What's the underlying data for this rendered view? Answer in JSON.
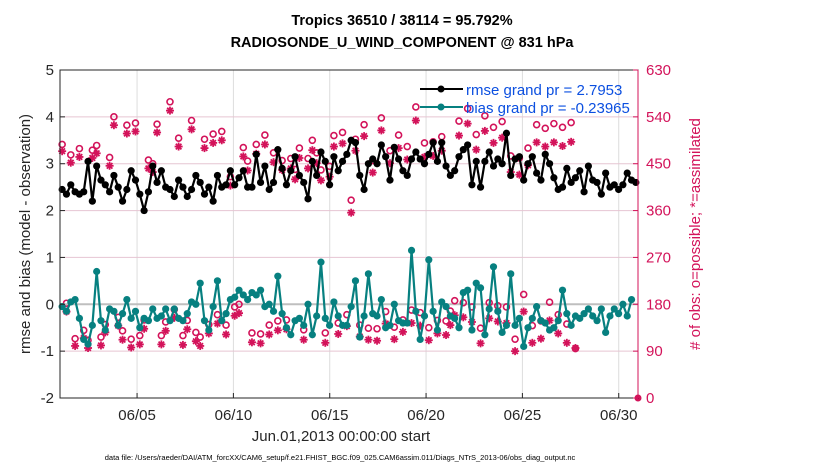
{
  "chart_data": {
    "type": "line",
    "title": "Tropics 36510 / 38114 = 95.792%",
    "subtitle": "RADIOSONDE_U_WIND_COMPONENT @ 831 hPa",
    "xlabel": "Jun.01,2013 00:00:00 start",
    "ylabel": "rmse and bias (model - observation)",
    "ylabel_right": "# of obs: o=possible; *=assimilated",
    "footnote": "data file: /Users/raeder/DAI/ATM_forcXX/CAM6_setup/f.e21.FHIST_BGC.f09_025.CAM6assim.011/Diags_NTrS_2013-06/obs_diag_output.nc",
    "x_unit": "days since Jun 1 2013 00:00",
    "xlim": [
      0,
      30
    ],
    "ylim": [
      -2,
      5
    ],
    "ylim_right": [
      0,
      630
    ],
    "x_ticks": [
      {
        "x": 4,
        "label": "06/05"
      },
      {
        "x": 9,
        "label": "06/10"
      },
      {
        "x": 14,
        "label": "06/15"
      },
      {
        "x": 19,
        "label": "06/20"
      },
      {
        "x": 24,
        "label": "06/25"
      },
      {
        "x": 29,
        "label": "06/30"
      }
    ],
    "y_ticks": [
      "-2",
      "-1",
      "0",
      "1",
      "2",
      "3",
      "4",
      "5"
    ],
    "y_ticks_right": [
      "0",
      "90",
      "180",
      "270",
      "360",
      "450",
      "540",
      "630"
    ],
    "grid": true,
    "legend_position": "top-right",
    "colors": {
      "rmse": "#000000",
      "bias": "#078080",
      "obs": "#d3135a",
      "zero_line": "#bfbfbf",
      "grid": "#e6c5d2",
      "legend_text": "#0b4fe0"
    },
    "legend": [
      {
        "name": "rmse grand pr = 2.7953"
      },
      {
        "name": "bias grand pr = -0.23965"
      }
    ],
    "series": [
      {
        "name": "rmse",
        "values": [
          2.45,
          2.35,
          2.55,
          2.4,
          2.35,
          2.4,
          3.05,
          2.2,
          2.95,
          2.65,
          2.55,
          2.4,
          2.75,
          2.5,
          2.2,
          2.45,
          2.85,
          2.65,
          2.35,
          2.0,
          2.4,
          2.95,
          2.6,
          2.85,
          2.5,
          2.45,
          2.3,
          2.65,
          2.5,
          2.3,
          2.45,
          2.75,
          2.6,
          2.35,
          2.5,
          2.2,
          2.75,
          2.5,
          2.55,
          2.85,
          2.55,
          2.7,
          2.85,
          2.5,
          2.5,
          3.2,
          2.6,
          2.95,
          2.45,
          2.6,
          3.3,
          2.9,
          2.55,
          2.85,
          3.15,
          2.75,
          2.6,
          2.25,
          3.05,
          2.75,
          3.25,
          3.05,
          2.55,
          3.15,
          2.85,
          3.05,
          3.2,
          3.5,
          3.45,
          2.75,
          2.45,
          3.0,
          3.1,
          3.0,
          3.4,
          3.15,
          2.65,
          3.35,
          3.1,
          2.85,
          2.75,
          3.1,
          3.25,
          3.1,
          3.0,
          3.2,
          3.45,
          3.05,
          3.45,
          2.95,
          2.75,
          2.85,
          3.15,
          3.3,
          3.4,
          2.55,
          3.05,
          2.5,
          3.05,
          3.25,
          2.95,
          3.1,
          3.0,
          3.65,
          2.75,
          3.1,
          3.15,
          2.65,
          3.0,
          3.15,
          2.8,
          2.65,
          3.2,
          3.0,
          2.7,
          2.45,
          2.5,
          2.9,
          2.6,
          2.7,
          2.85,
          2.4,
          2.95,
          2.65,
          2.6,
          2.35,
          2.8,
          2.5,
          2.55,
          2.45,
          2.55,
          2.8,
          2.65,
          2.6
        ]
      },
      {
        "name": "bias",
        "values": [
          -0.05,
          -0.15,
          0.05,
          0.1,
          -0.3,
          -0.75,
          -0.85,
          -0.45,
          0.7,
          -0.35,
          -0.55,
          -0.1,
          -0.15,
          -0.45,
          -0.2,
          0.1,
          -0.3,
          -0.15,
          -0.5,
          -0.3,
          -0.35,
          -0.1,
          -0.3,
          -0.25,
          -0.1,
          -0.35,
          -0.1,
          -0.3,
          -0.35,
          -0.2,
          0.05,
          0.0,
          0.45,
          -0.35,
          -0.55,
          -0.05,
          0.5,
          -0.35,
          -0.2,
          0.1,
          0.15,
          0.3,
          0.2,
          0.1,
          0.25,
          0.2,
          0.3,
          -0.05,
          0.0,
          -0.15,
          0.6,
          -0.2,
          -0.5,
          -0.65,
          -0.35,
          -0.3,
          -0.45,
          0.0,
          -0.65,
          -0.25,
          0.9,
          -0.3,
          -0.45,
          0.05,
          -0.25,
          -0.45,
          -0.45,
          -0.05,
          0.5,
          -0.7,
          -0.25,
          0.65,
          -0.2,
          -0.25,
          0.1,
          -0.5,
          -0.45,
          0.0,
          -0.35,
          -0.4,
          -0.4,
          1.15,
          -0.15,
          -0.75,
          -0.25,
          0.95,
          -0.15,
          -0.55,
          0.05,
          -0.05,
          -0.25,
          -0.3,
          -0.5,
          0.25,
          0.3,
          -0.55,
          0.45,
          0.35,
          -0.65,
          -0.1,
          0.8,
          -0.15,
          -0.6,
          -0.45,
          0.65,
          -0.45,
          -0.3,
          -0.9,
          -0.5,
          -0.3,
          -0.05,
          -0.35,
          -0.4,
          -0.55,
          -0.5,
          -0.35,
          0.3,
          -0.2,
          -0.45,
          -0.25,
          -0.3,
          -0.2,
          -0.1,
          -0.25,
          -0.35,
          -0.1,
          -0.6,
          -0.25,
          -0.1,
          -0.2,
          0.0,
          -0.25,
          0.1
        ]
      },
      {
        "name": "obs_possible",
        "values": [
          487,
          182,
          467,
          114,
          479,
          130,
          111,
          476,
          485,
          117,
          141,
          462,
          540,
          155,
          129,
          524,
          113,
          528,
          120,
          150,
          457,
          450,
          526,
          120,
          146,
          569,
          170,
          499,
          120,
          149,
          533,
          126,
          117,
          497,
          141,
          507,
          160,
          512,
          140,
          425,
          175,
          180,
          481,
          455,
          125,
          487,
          123,
          505,
          140,
          471,
          148,
          456,
          150,
          460,
          439,
          480,
          131,
          460,
          495,
          471,
          438,
          125,
          445,
          504,
          144,
          510,
          160,
          380,
          497,
          140,
          525,
          134,
          456,
          133,
          538,
          166,
          475,
          136,
          505,
          150,
          483,
          169,
          559,
          164,
          490,
          135,
          492,
          149,
          502,
          148,
          167,
          187,
          532,
          183,
          556,
          175,
          506,
          134,
          542,
          183,
          520,
          177,
          531,
          175,
          465,
          113,
          461,
          199,
          480,
          139,
          525,
          148,
          518,
          184,
          527,
          160,
          520,
          142,
          529,
          95
        ]
      },
      {
        "name": "obs_assimilated",
        "values": [
          474,
          166,
          452,
          100,
          463,
          115,
          96,
          461,
          470,
          101,
          126,
          446,
          524,
          139,
          112,
          508,
          97,
          512,
          103,
          133,
          441,
          434,
          510,
          103,
          129,
          552,
          154,
          483,
          102,
          132,
          516,
          109,
          100,
          480,
          124,
          490,
          143,
          495,
          122,
          408,
          158,
          163,
          464,
          437,
          107,
          469,
          105,
          487,
          122,
          453,
          130,
          438,
          132,
          441,
          420,
          461,
          112,
          441,
          476,
          451,
          418,
          106,
          425,
          483,
          123,
          489,
          138,
          356,
          475,
          118,
          503,
          112,
          433,
          110,
          514,
          143,
          451,
          113,
          480,
          127,
          458,
          144,
          533,
          139,
          463,
          111,
          465,
          124,
          475,
          121,
          140,
          159,
          504,
          155,
          527,
          146,
          477,
          105,
          513,
          153,
          490,
          147,
          500,
          144,
          434,
          90,
          429,
          166,
          447,
          106,
          491,
          114,
          483,
          149,
          491,
          124,
          484,
          106,
          492,
          96
        ]
      }
    ]
  }
}
